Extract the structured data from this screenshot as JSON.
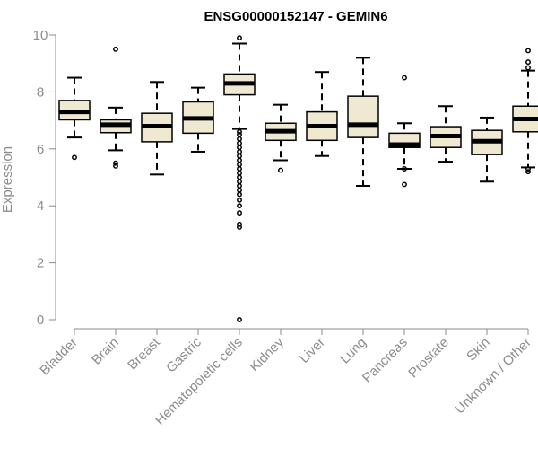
{
  "chart_data": {
    "type": "box",
    "title": "ENSG00000152147 - GEMIN6",
    "xlabel": "",
    "ylabel": "Expression",
    "ylim": [
      0,
      10
    ],
    "yticks": [
      "0",
      "2",
      "4",
      "6",
      "8",
      "10"
    ],
    "grid": false,
    "box_fill": "#efe9d2",
    "box_stroke": "#000000",
    "median_color": "#000000",
    "axis_color": "#8c8c8c",
    "categories": [
      "Bladder",
      "Brain",
      "Breast",
      "Gastric",
      "Hematopoietic cells",
      "Kidney",
      "Liver",
      "Lung",
      "Pancreas",
      "Prostate",
      "Skin",
      "Unknown / Other"
    ],
    "boxes": [
      {
        "category": "Bladder",
        "whisker_low": 6.4,
        "q1": 7.02,
        "median": 7.3,
        "q3": 7.7,
        "whisker_high": 8.5,
        "outliers": [
          5.7
        ]
      },
      {
        "category": "Brain",
        "whisker_low": 5.95,
        "q1": 6.57,
        "median": 6.85,
        "q3": 7.02,
        "whisker_high": 7.45,
        "outliers": [
          9.5,
          5.5,
          5.4
        ]
      },
      {
        "category": "Breast",
        "whisker_low": 5.1,
        "q1": 6.25,
        "median": 6.8,
        "q3": 7.25,
        "whisker_high": 8.35,
        "outliers": []
      },
      {
        "category": "Gastric",
        "whisker_low": 5.9,
        "q1": 6.55,
        "median": 7.07,
        "q3": 7.65,
        "whisker_high": 8.15,
        "outliers": []
      },
      {
        "category": "Hematopoietic cells",
        "whisker_low": 6.7,
        "q1": 7.9,
        "median": 8.3,
        "q3": 8.63,
        "whisker_high": 9.7,
        "outliers": [
          9.9,
          6.6,
          6.5,
          6.35,
          6.2,
          6.05,
          5.9,
          5.75,
          5.6,
          5.45,
          5.3,
          5.15,
          5.0,
          4.85,
          4.7,
          4.55,
          4.4,
          4.2,
          4.0,
          3.75,
          3.35,
          3.25,
          0.0
        ]
      },
      {
        "category": "Kidney",
        "whisker_low": 5.6,
        "q1": 6.3,
        "median": 6.62,
        "q3": 6.9,
        "whisker_high": 7.55,
        "outliers": [
          5.25
        ]
      },
      {
        "category": "Liver",
        "whisker_low": 5.75,
        "q1": 6.3,
        "median": 6.8,
        "q3": 7.3,
        "whisker_high": 8.7,
        "outliers": []
      },
      {
        "category": "Lung",
        "whisker_low": 4.7,
        "q1": 6.4,
        "median": 6.85,
        "q3": 7.85,
        "whisker_high": 9.2,
        "outliers": []
      },
      {
        "category": "Pancreas",
        "whisker_low": 5.3,
        "q1": 6.05,
        "median": 6.15,
        "q3": 6.55,
        "whisker_high": 6.9,
        "outliers": [
          8.5,
          5.3,
          4.75
        ]
      },
      {
        "category": "Prostate",
        "whisker_low": 5.55,
        "q1": 6.05,
        "median": 6.45,
        "q3": 6.78,
        "whisker_high": 7.5,
        "outliers": []
      },
      {
        "category": "Skin",
        "whisker_low": 4.85,
        "q1": 5.8,
        "median": 6.27,
        "q3": 6.65,
        "whisker_high": 7.1,
        "outliers": []
      },
      {
        "category": "Unknown / Other",
        "whisker_low": 5.35,
        "q1": 6.6,
        "median": 7.05,
        "q3": 7.5,
        "whisker_high": 8.75,
        "outliers": [
          9.45,
          9.05,
          8.85,
          5.3,
          5.2
        ]
      }
    ]
  }
}
